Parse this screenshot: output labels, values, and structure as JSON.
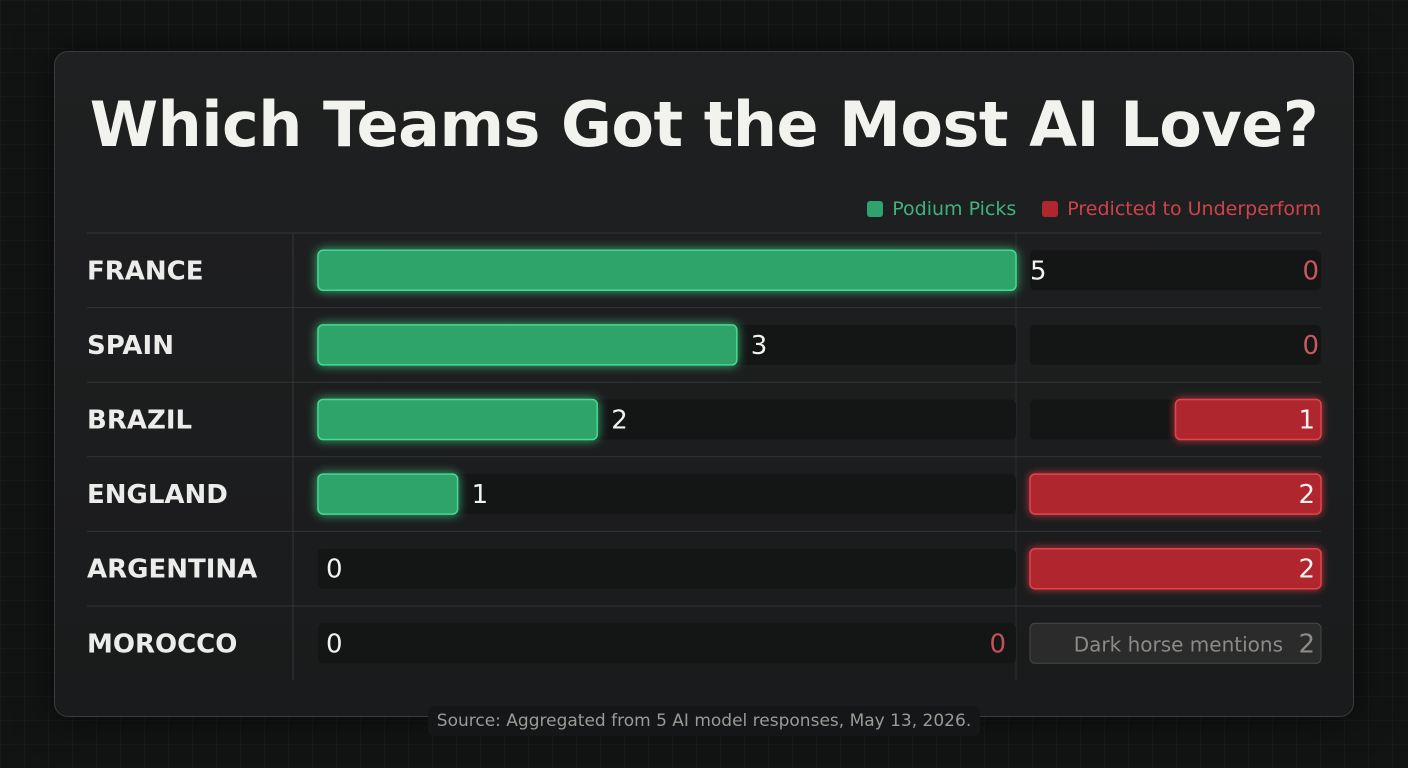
{
  "title": "Which Teams Got the Most AI Love?",
  "legend": {
    "podium": {
      "label": "Podium Picks",
      "color": "#2fa36b"
    },
    "under": {
      "label": "Predicted to Underperform",
      "color": "#b0262f"
    }
  },
  "footer": "Source: Aggregated from 5 AI model responses, May 13, 2026.",
  "chart_data": {
    "type": "bar",
    "categories": [
      "FRANCE",
      "SPAIN",
      "BRAZIL",
      "ENGLAND",
      "ARGENTINA",
      "MOROCCO"
    ],
    "series": [
      {
        "name": "Podium Picks",
        "values": [
          5,
          3,
          2,
          1,
          0,
          0
        ],
        "color": "#2fa36b"
      },
      {
        "name": "Predicted to Underperform",
        "values": [
          0,
          0,
          1,
          2,
          2,
          0
        ],
        "color": "#b0262f"
      }
    ],
    "annotations": [
      {
        "category": "MOROCCO",
        "text": "Dark horse mentions",
        "value": 2
      }
    ],
    "xlim": [
      0,
      5
    ]
  }
}
